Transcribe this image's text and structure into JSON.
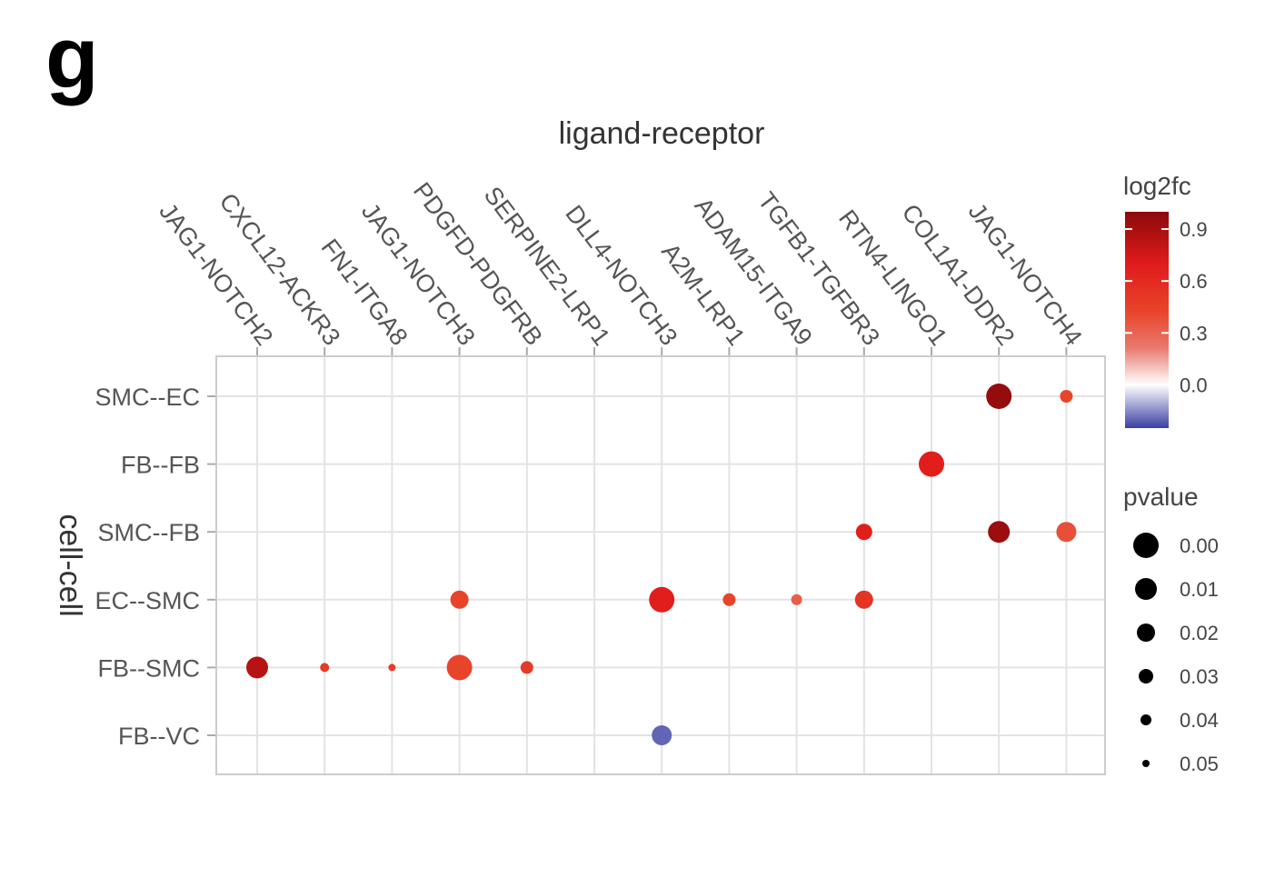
{
  "panel_label": "g",
  "chart_data": {
    "type": "scatter",
    "title": "",
    "xlabel": "ligand-receptor",
    "ylabel": "cell-cell",
    "x_categories": [
      "JAG1-NOTCH2",
      "CXCL12-ACKR3",
      "FN1-ITGA8",
      "JAG1-NOTCH3",
      "PDGFD-PDGFRB",
      "SERPINE2-LRP1",
      "DLL4-NOTCH3",
      "A2M-LRP1",
      "ADAM15-ITGA9",
      "TGFB1-TGFBR3",
      "RTN4-LINGO1",
      "COL1A1-DDR2",
      "JAG1-NOTCH4"
    ],
    "y_categories": [
      "SMC--EC",
      "FB--FB",
      "SMC--FB",
      "EC--SMC",
      "FB--SMC",
      "FB--VC"
    ],
    "grid": true,
    "color_legend": {
      "title": "log2fc",
      "ticks": [
        0.9,
        0.6,
        0.3,
        0.0
      ],
      "tick_labels": [
        "0.9",
        "0.6",
        "0.3",
        "0.0"
      ],
      "range": [
        -0.25,
        1.0
      ],
      "colors": {
        "low": "#3b3fa3",
        "mid": "#ffffff",
        "midhigh": "#e8442a",
        "high": "#e01b1b",
        "top": "#8b0a0a"
      }
    },
    "size_legend": {
      "title": "pvalue",
      "values": [
        0.0,
        0.01,
        0.02,
        0.03,
        0.04,
        0.05
      ],
      "labels": [
        "0.00",
        "0.01",
        "0.02",
        "0.03",
        "0.04",
        "0.05"
      ]
    },
    "points": [
      {
        "x": "COL1A1-DDR2",
        "y": "SMC--EC",
        "log2fc": 0.92,
        "pvalue": 0.0
      },
      {
        "x": "JAG1-NOTCH4",
        "y": "SMC--EC",
        "log2fc": 0.45,
        "pvalue": 0.035
      },
      {
        "x": "RTN4-LINGO1",
        "y": "FB--FB",
        "log2fc": 0.68,
        "pvalue": 0.0
      },
      {
        "x": "COL1A1-DDR2",
        "y": "SMC--FB",
        "log2fc": 0.9,
        "pvalue": 0.01
      },
      {
        "x": "TGFB1-TGFBR3",
        "y": "SMC--FB",
        "log2fc": 0.68,
        "pvalue": 0.025
      },
      {
        "x": "JAG1-NOTCH4",
        "y": "SMC--FB",
        "log2fc": 0.42,
        "pvalue": 0.015
      },
      {
        "x": "JAG1-NOTCH3",
        "y": "EC--SMC",
        "log2fc": 0.45,
        "pvalue": 0.02
      },
      {
        "x": "DLL4-NOTCH3",
        "y": "EC--SMC",
        "log2fc": 0.68,
        "pvalue": 0.0
      },
      {
        "x": "A2M-LRP1",
        "y": "EC--SMC",
        "log2fc": 0.45,
        "pvalue": 0.035
      },
      {
        "x": "ADAM15-ITGA9",
        "y": "EC--SMC",
        "log2fc": 0.38,
        "pvalue": 0.04
      },
      {
        "x": "TGFB1-TGFBR3",
        "y": "EC--SMC",
        "log2fc": 0.55,
        "pvalue": 0.02
      },
      {
        "x": "JAG1-NOTCH2",
        "y": "FB--SMC",
        "log2fc": 0.82,
        "pvalue": 0.01
      },
      {
        "x": "CXCL12-ACKR3",
        "y": "FB--SMC",
        "log2fc": 0.5,
        "pvalue": 0.045
      },
      {
        "x": "FN1-ITGA8",
        "y": "FB--SMC",
        "log2fc": 0.5,
        "pvalue": 0.05
      },
      {
        "x": "JAG1-NOTCH3",
        "y": "FB--SMC",
        "log2fc": 0.45,
        "pvalue": 0.0
      },
      {
        "x": "PDGFD-PDGFRB",
        "y": "FB--SMC",
        "log2fc": 0.5,
        "pvalue": 0.035
      },
      {
        "x": "DLL4-NOTCH3",
        "y": "FB--VC",
        "log2fc": -0.2,
        "pvalue": 0.015
      }
    ]
  }
}
